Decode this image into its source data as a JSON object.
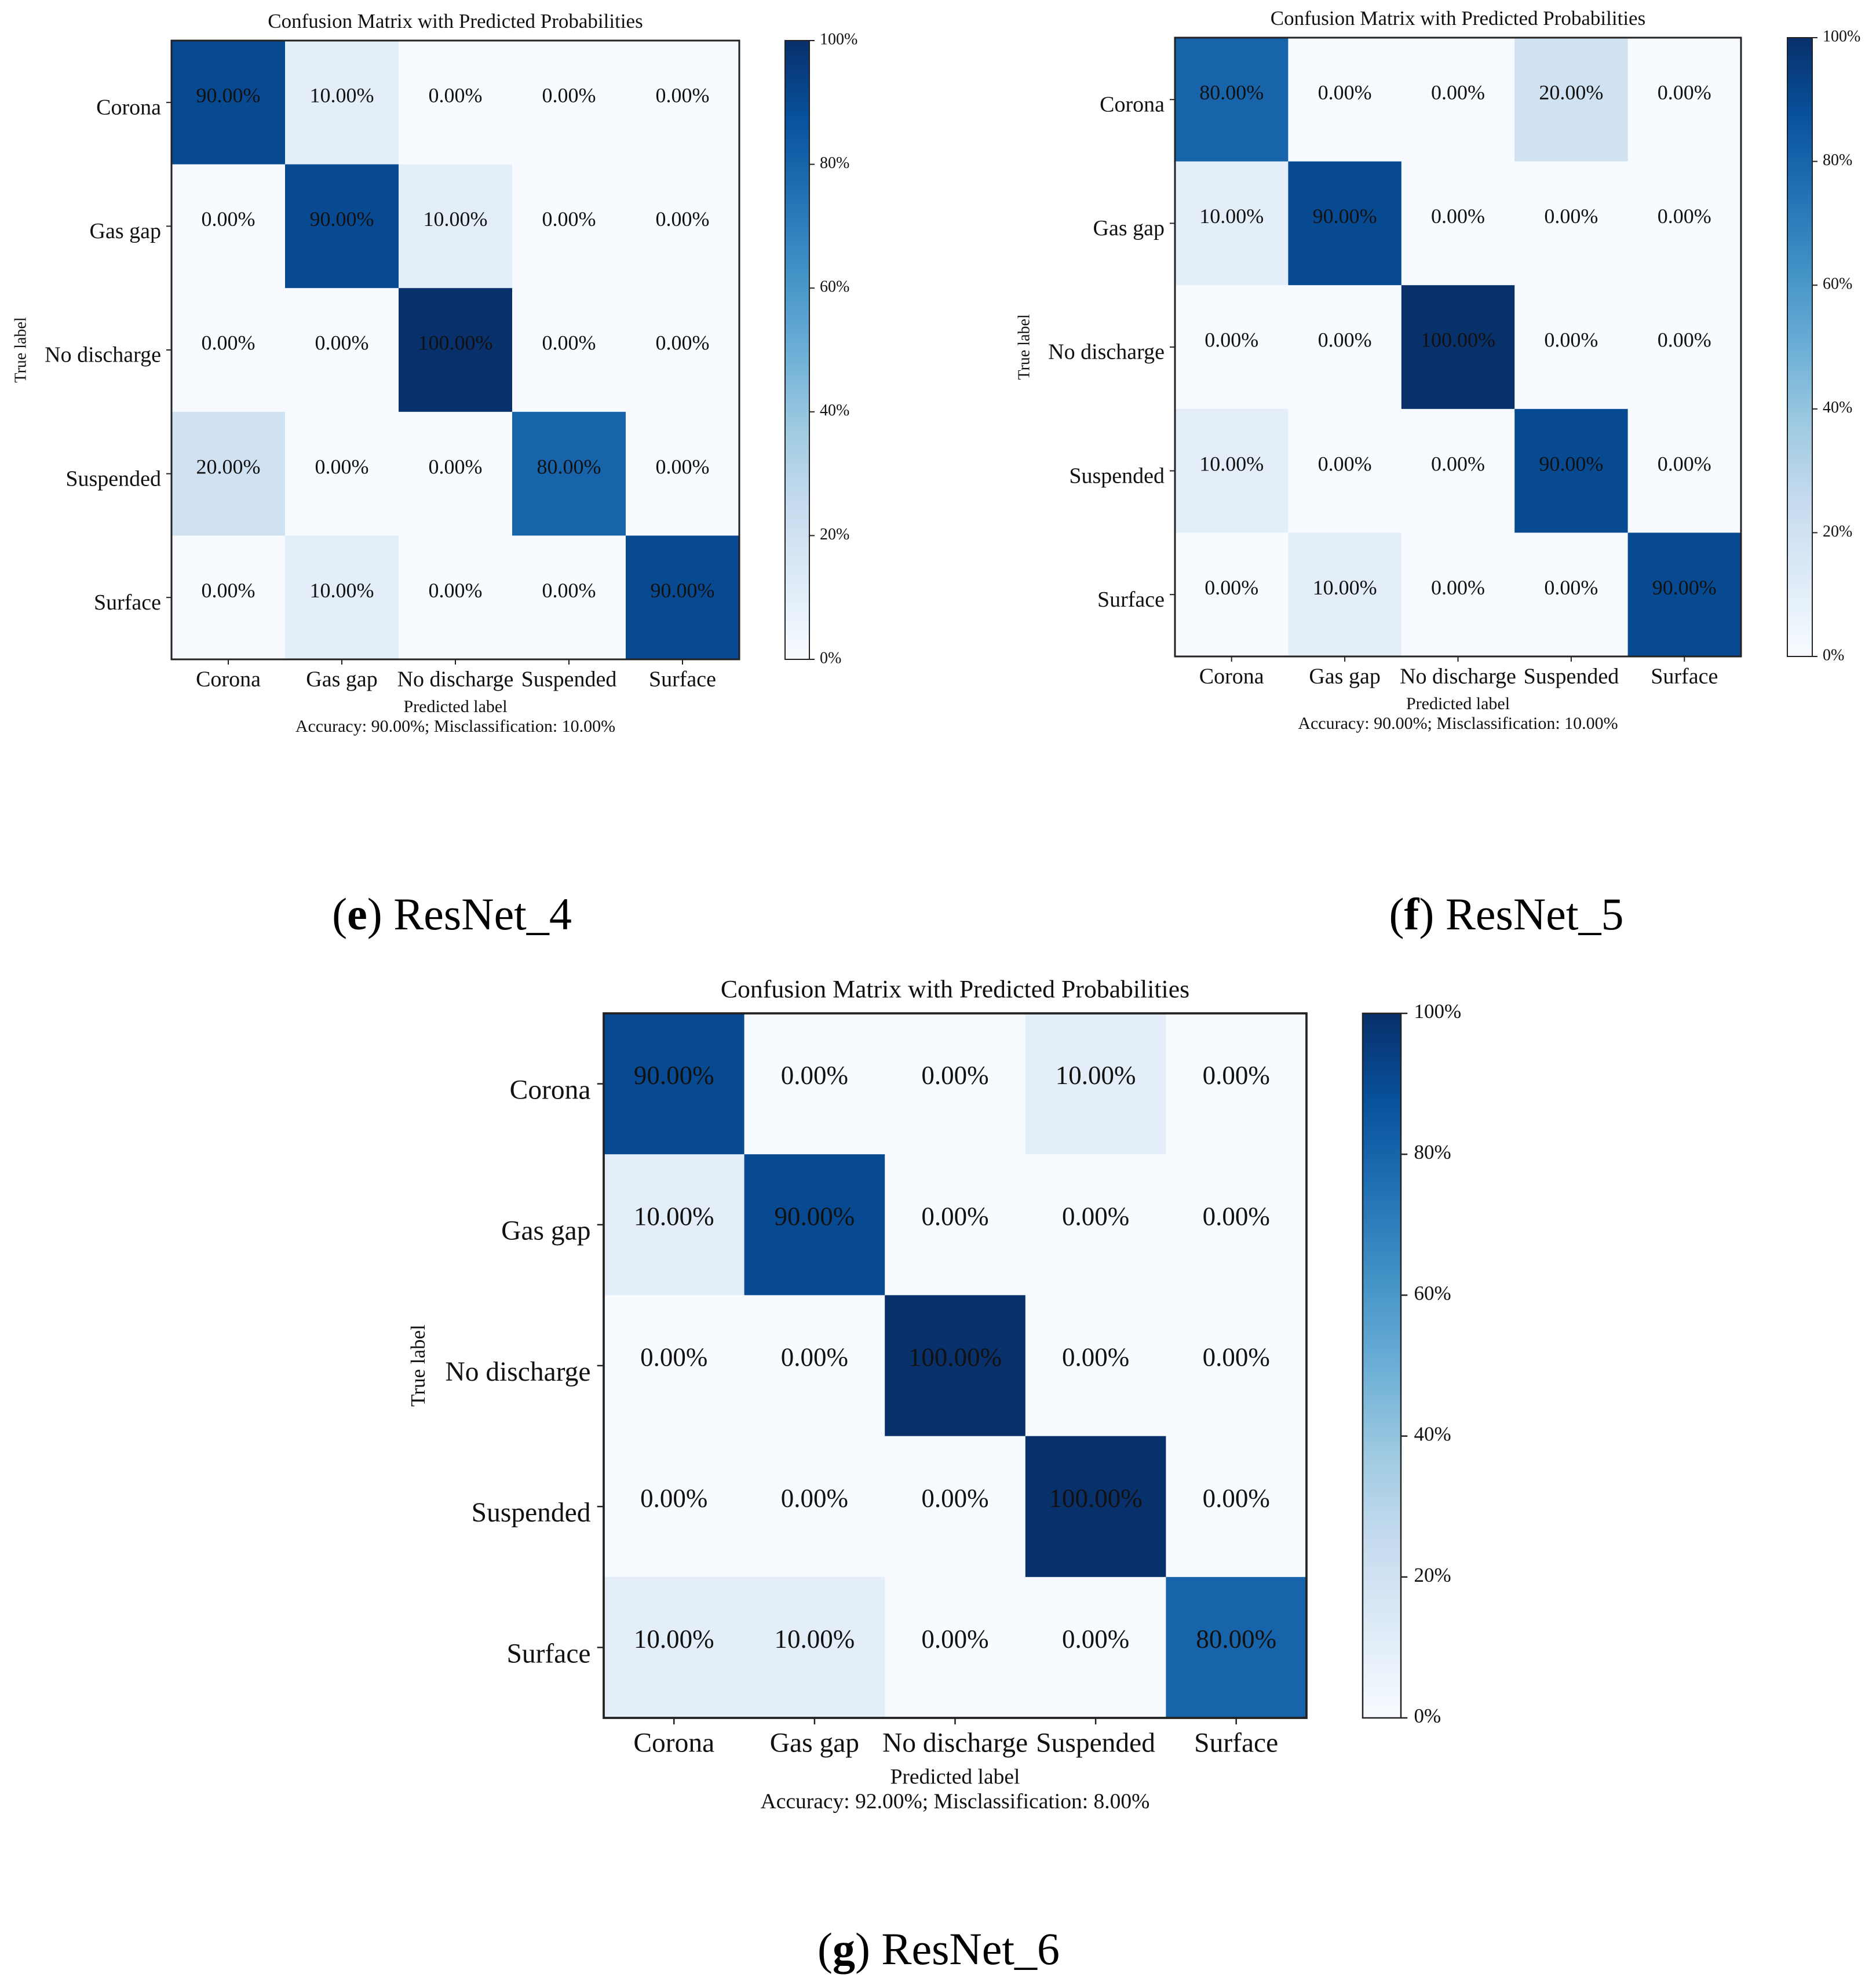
{
  "chart_data": [
    {
      "type": "heatmap",
      "title": "Confusion Matrix with Predicted Probabilities",
      "xlabel": "Predicted label",
      "ylabel": "True label",
      "note": "Accuracy: 90.00%; Misclassification: 10.00%",
      "categories": [
        "Corona",
        "Gas gap",
        "No discharge",
        "Suspended",
        "Surface"
      ],
      "cell_labels": [
        [
          "90.00%",
          "10.00%",
          "0.00%",
          "0.00%",
          "0.00%"
        ],
        [
          "0.00%",
          "90.00%",
          "10.00%",
          "0.00%",
          "0.00%"
        ],
        [
          "0.00%",
          "0.00%",
          "100.00%",
          "0.00%",
          "0.00%"
        ],
        [
          "20.00%",
          "0.00%",
          "0.00%",
          "80.00%",
          "0.00%"
        ],
        [
          "0.00%",
          "10.00%",
          "0.00%",
          "0.00%",
          "90.00%"
        ]
      ],
      "values": [
        [
          90,
          10,
          0,
          0,
          0
        ],
        [
          0,
          90,
          10,
          0,
          0
        ],
        [
          0,
          0,
          100,
          0,
          0
        ],
        [
          20,
          0,
          0,
          80,
          0
        ],
        [
          0,
          10,
          0,
          0,
          90
        ]
      ],
      "colorbar_ticks": [
        "0%",
        "20%",
        "40%",
        "60%",
        "80%",
        "100%"
      ],
      "colormap": "Blues",
      "caption_letter": "e",
      "caption_text": " ResNet_4"
    },
    {
      "type": "heatmap",
      "title": "Confusion Matrix with Predicted Probabilities",
      "xlabel": "Predicted label",
      "ylabel": "True label",
      "note": "Accuracy: 90.00%; Misclassification: 10.00%",
      "categories": [
        "Corona",
        "Gas gap",
        "No discharge",
        "Suspended",
        "Surface"
      ],
      "cell_labels": [
        [
          "80.00%",
          "0.00%",
          "0.00%",
          "20.00%",
          "0.00%"
        ],
        [
          "10.00%",
          "90.00%",
          "0.00%",
          "0.00%",
          "0.00%"
        ],
        [
          "0.00%",
          "0.00%",
          "100.00%",
          "0.00%",
          "0.00%"
        ],
        [
          "10.00%",
          "0.00%",
          "0.00%",
          "90.00%",
          "0.00%"
        ],
        [
          "0.00%",
          "10.00%",
          "0.00%",
          "0.00%",
          "90.00%"
        ]
      ],
      "values": [
        [
          80,
          0,
          0,
          20,
          0
        ],
        [
          10,
          90,
          0,
          0,
          0
        ],
        [
          0,
          0,
          100,
          0,
          0
        ],
        [
          10,
          0,
          0,
          90,
          0
        ],
        [
          0,
          10,
          0,
          0,
          90
        ]
      ],
      "colorbar_ticks": [
        "0%",
        "20%",
        "40%",
        "60%",
        "80%",
        "100%"
      ],
      "colormap": "Blues",
      "caption_letter": "f",
      "caption_text": " ResNet_5"
    },
    {
      "type": "heatmap",
      "title": "Confusion Matrix with Predicted Probabilities",
      "xlabel": "Predicted label",
      "ylabel": "True label",
      "note": "Accuracy: 92.00%; Misclassification: 8.00%",
      "categories": [
        "Corona",
        "Gas gap",
        "No discharge",
        "Suspended",
        "Surface"
      ],
      "cell_labels": [
        [
          "90.00%",
          "0.00%",
          "0.00%",
          "10.00%",
          "0.00%"
        ],
        [
          "10.00%",
          "90.00%",
          "0.00%",
          "0.00%",
          "0.00%"
        ],
        [
          "0.00%",
          "0.00%",
          "100.00%",
          "0.00%",
          "0.00%"
        ],
        [
          "0.00%",
          "0.00%",
          "0.00%",
          "100.00%",
          "0.00%"
        ],
        [
          "10.00%",
          "10.00%",
          "0.00%",
          "0.00%",
          "80.00%"
        ]
      ],
      "values": [
        [
          90,
          0,
          0,
          10,
          0
        ],
        [
          10,
          90,
          0,
          0,
          0
        ],
        [
          0,
          0,
          100,
          0,
          0
        ],
        [
          0,
          0,
          0,
          100,
          0
        ],
        [
          10,
          10,
          0,
          0,
          80
        ]
      ],
      "colorbar_ticks": [
        "0%",
        "20%",
        "40%",
        "60%",
        "80%",
        "100%"
      ],
      "colormap": "Blues",
      "caption_letter": "g",
      "caption_text": " ResNet_6"
    }
  ]
}
